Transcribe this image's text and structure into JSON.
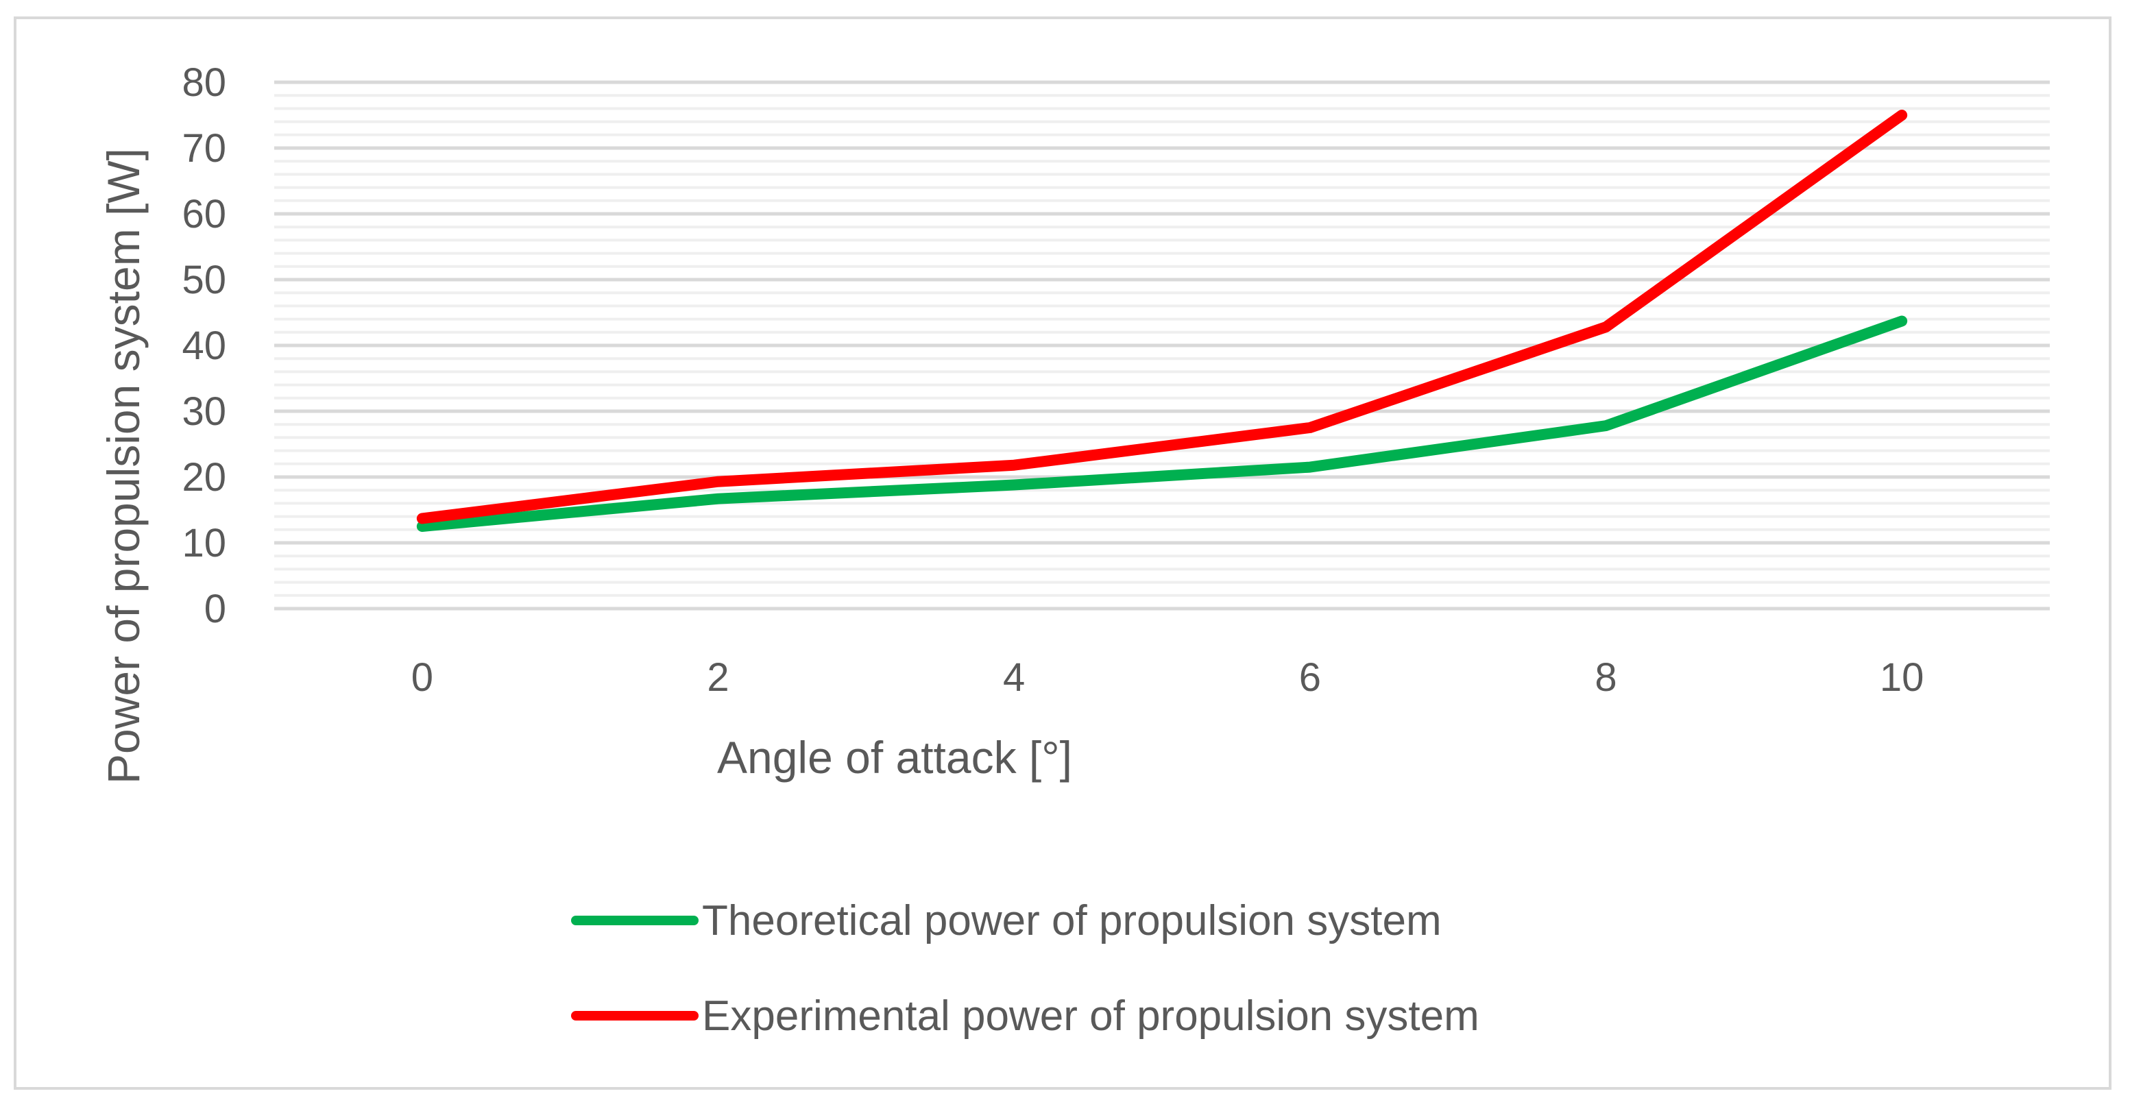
{
  "chart_data": {
    "type": "line",
    "title": "",
    "xlabel": "Angle of attack [°]",
    "ylabel": "Power of propulsion system [W]",
    "x": [
      0,
      2,
      4,
      6,
      8,
      10
    ],
    "ylim": [
      0,
      80
    ],
    "yticks": [
      0,
      10,
      20,
      30,
      40,
      50,
      60,
      70,
      80
    ],
    "grid": true,
    "legend_position": "bottom",
    "series": [
      {
        "name": "Theoretical power of propulsion system",
        "color": "#00b050",
        "values": [
          12.5,
          16.7,
          18.8,
          21.5,
          27.8,
          43.7
        ]
      },
      {
        "name": "Experimental power of propulsion system",
        "color": "#ff0000",
        "values": [
          13.7,
          19.3,
          21.8,
          27.5,
          42.8,
          75.0
        ]
      }
    ]
  }
}
